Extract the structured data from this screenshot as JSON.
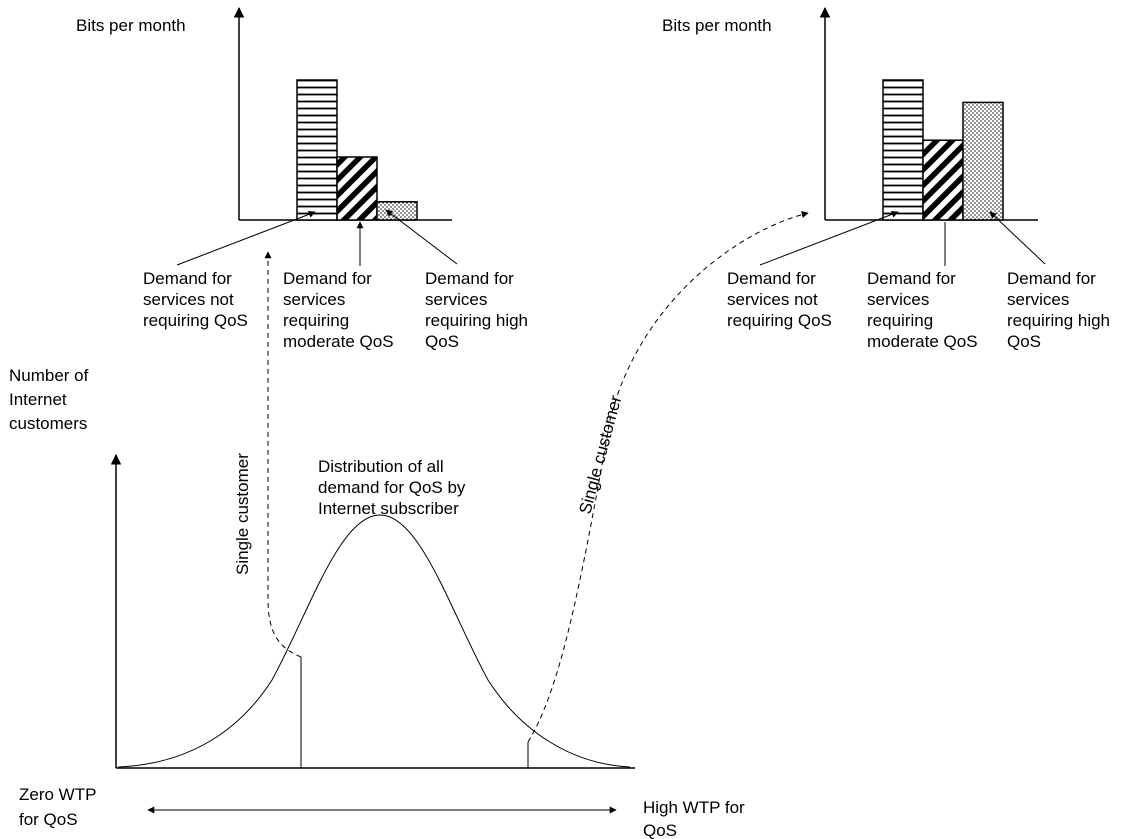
{
  "colors": {
    "ink": "#000000",
    "background": "#ffffff"
  },
  "left_chart": {
    "ylabel": "Bits per month",
    "bars": [
      {
        "name": "not-requiring-qos",
        "value": 1.0,
        "pattern": "horizontal-lines"
      },
      {
        "name": "moderate-qos",
        "value": 0.45,
        "pattern": "diagonal-hatch"
      },
      {
        "name": "high-qos",
        "value": 0.13,
        "pattern": "dots"
      }
    ],
    "labels": [
      [
        "Demand for",
        "services not",
        "requiring QoS"
      ],
      [
        "Demand for",
        "services",
        "requiring",
        "moderate QoS"
      ],
      [
        "Demand for",
        "services",
        "requiring high",
        "QoS"
      ]
    ]
  },
  "right_chart": {
    "ylabel": "Bits per month",
    "bars": [
      {
        "name": "not-requiring-qos",
        "value": 1.0,
        "pattern": "horizontal-lines"
      },
      {
        "name": "moderate-qos",
        "value": 0.57,
        "pattern": "diagonal-hatch"
      },
      {
        "name": "high-qos",
        "value": 0.84,
        "pattern": "dots"
      }
    ],
    "labels": [
      [
        "Demand for",
        "services not",
        "requiring QoS"
      ],
      [
        "Demand for",
        "services",
        "requiring",
        "moderate QoS"
      ],
      [
        "Demand for",
        "services",
        "requiring high",
        "QoS"
      ]
    ]
  },
  "distribution": {
    "ylabel": [
      "Number of",
      "Internet",
      "customers"
    ],
    "caption": [
      "Distribution of all",
      "demand for QoS by",
      "Internet subscriber"
    ],
    "x_left_label": [
      "Zero WTP",
      "for QoS"
    ],
    "x_right_label": [
      "High WTP for",
      "QoS"
    ]
  },
  "connectors": {
    "left_label": "Single customer",
    "right_label": "Single customer"
  }
}
